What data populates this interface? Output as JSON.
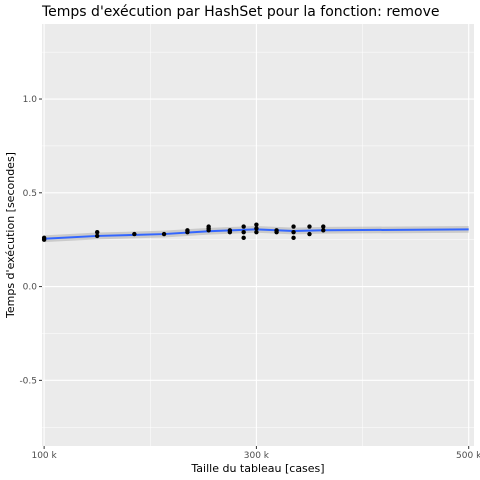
{
  "chart_data": {
    "type": "scatter",
    "title": "Temps d'exécution par HashSet pour la fonction: remove",
    "xlabel": "Taille du tableau [cases]",
    "ylabel": "Temps d'exécution [secondes]",
    "xlim": [
      98000,
      505000
    ],
    "ylim": [
      -0.85,
      1.4
    ],
    "x_ticks": [
      100000,
      300000,
      500000
    ],
    "x_tick_labels": [
      "100 k",
      "300 k",
      "500 k"
    ],
    "x_minor_ticks": [
      200000,
      400000
    ],
    "y_ticks": [
      -0.5,
      0.0,
      0.5,
      1.0
    ],
    "y_tick_labels": [
      "-0.5",
      "0.0",
      "0.5",
      "1.0"
    ],
    "points": [
      {
        "x": 100000,
        "y": 0.25
      },
      {
        "x": 100000,
        "y": 0.26
      },
      {
        "x": 150000,
        "y": 0.29
      },
      {
        "x": 150000,
        "y": 0.27
      },
      {
        "x": 185000,
        "y": 0.28
      },
      {
        "x": 213000,
        "y": 0.28
      },
      {
        "x": 235000,
        "y": 0.3
      },
      {
        "x": 235000,
        "y": 0.29
      },
      {
        "x": 255000,
        "y": 0.32
      },
      {
        "x": 255000,
        "y": 0.31
      },
      {
        "x": 255000,
        "y": 0.3
      },
      {
        "x": 275000,
        "y": 0.3
      },
      {
        "x": 275000,
        "y": 0.29
      },
      {
        "x": 288000,
        "y": 0.32
      },
      {
        "x": 288000,
        "y": 0.29
      },
      {
        "x": 288000,
        "y": 0.26
      },
      {
        "x": 300000,
        "y": 0.33
      },
      {
        "x": 300000,
        "y": 0.31
      },
      {
        "x": 300000,
        "y": 0.29
      },
      {
        "x": 319000,
        "y": 0.3
      },
      {
        "x": 319000,
        "y": 0.29
      },
      {
        "x": 335000,
        "y": 0.32
      },
      {
        "x": 335000,
        "y": 0.29
      },
      {
        "x": 335000,
        "y": 0.26
      },
      {
        "x": 350000,
        "y": 0.32
      },
      {
        "x": 350000,
        "y": 0.28
      },
      {
        "x": 363000,
        "y": 0.32
      },
      {
        "x": 363000,
        "y": 0.3
      }
    ],
    "smooth_line": [
      {
        "x": 100000,
        "y": 0.255
      },
      {
        "x": 150000,
        "y": 0.27
      },
      {
        "x": 213000,
        "y": 0.28
      },
      {
        "x": 255000,
        "y": 0.295
      },
      {
        "x": 300000,
        "y": 0.305
      },
      {
        "x": 335000,
        "y": 0.296
      },
      {
        "x": 363000,
        "y": 0.3
      },
      {
        "x": 500000,
        "y": 0.305
      }
    ],
    "smooth_color": "#3366FF",
    "panel_color": "#EBEBEB",
    "grid_color": "#FFFFFF",
    "point_color": "#000000"
  }
}
